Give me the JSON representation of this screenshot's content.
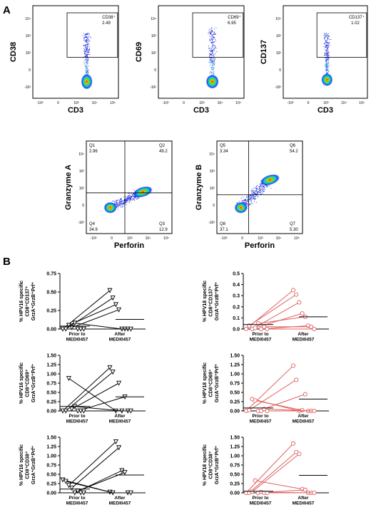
{
  "panels": {
    "A": "A",
    "B": "B"
  },
  "flow_scatter": [
    {
      "id": "cd38",
      "xlabel": "CD3",
      "ylabel": "CD38",
      "gate": {
        "name": "CD38⁺",
        "value": "2.49"
      }
    },
    {
      "id": "cd69",
      "xlabel": "CD3",
      "ylabel": "CD69",
      "gate": {
        "name": "CD69⁺",
        "value": "6.95"
      }
    },
    {
      "id": "cd137",
      "xlabel": "CD3",
      "ylabel": "CD137",
      "gate": {
        "name": "CD137⁺",
        "value": "1.02"
      }
    }
  ],
  "flow_quadrant": [
    {
      "id": "grza",
      "xlabel": "Perforin",
      "ylabel": "Granzyme A",
      "quadrants": [
        {
          "name": "Q1",
          "value": "2.96"
        },
        {
          "name": "Q2",
          "value": "49.2"
        },
        {
          "name": "Q3",
          "value": "12.9"
        },
        {
          "name": "Q4",
          "value": "34.9"
        }
      ]
    },
    {
      "id": "grzb",
      "xlabel": "Perforin",
      "ylabel": "Granzyme B",
      "quadrants": [
        {
          "name": "Q5",
          "value": "3.34"
        },
        {
          "name": "Q6",
          "value": "54.2"
        },
        {
          "name": "Q7",
          "value": "5.30"
        },
        {
          "name": "Q8",
          "value": "37.1"
        }
      ]
    }
  ],
  "flow_ticks": {
    "y": [
      "10⁴",
      "10³",
      "10²",
      "0",
      "-10²"
    ],
    "x": [
      "-10³",
      "0",
      "10³",
      "10⁴",
      "10⁵"
    ]
  },
  "chart_data": [
    {
      "type": "scatter",
      "subtype": "paired-line",
      "row": 1,
      "col": 1,
      "ylabel": "% HPV16 specific CD8⁺CD137⁺ GrzA⁺GrzB⁺Prf⁺",
      "categories": [
        "Prior to MEDI0457",
        "After MEDI0457"
      ],
      "ylim": [
        0,
        0.75
      ],
      "yticks": [
        "0.00",
        "0.25",
        "0.50",
        "0.75"
      ],
      "marker": "triangle-down",
      "color": "#000000",
      "pairs": [
        [
          0.0,
          0.52
        ],
        [
          0.0,
          0.42
        ],
        [
          0.05,
          0.33
        ],
        [
          0.02,
          0.26
        ],
        [
          0.08,
          0.0
        ],
        [
          0.0,
          0.0
        ],
        [
          0.0,
          0.0
        ],
        [
          0.0,
          0.0
        ]
      ],
      "median": [
        0.04,
        0.13
      ]
    },
    {
      "type": "scatter",
      "subtype": "paired-line",
      "row": 1,
      "col": 2,
      "ylabel": "% HPV18 specific CD8⁺CD137⁺ GrzA⁺GrzB⁺Prf⁺",
      "categories": [
        "Prior to MEDI0457",
        "After MEDI0457"
      ],
      "ylim": [
        0,
        0.5
      ],
      "yticks": [
        "0.0",
        "0.1",
        "0.2",
        "0.3",
        "0.4",
        "0.5"
      ],
      "marker": "circle",
      "color": "#e06060",
      "pairs": [
        [
          0.0,
          0.35
        ],
        [
          0.03,
          0.31
        ],
        [
          0.0,
          0.24
        ],
        [
          0.01,
          0.14
        ],
        [
          0.05,
          0.11
        ],
        [
          0.0,
          0.03
        ],
        [
          0.02,
          0.02
        ],
        [
          0.0,
          0.0
        ]
      ],
      "median": [
        0.04,
        0.11
      ]
    },
    {
      "type": "scatter",
      "subtype": "paired-line",
      "row": 2,
      "col": 1,
      "ylabel": "% HPV16 specific CD8⁺CD69⁺ GrzA⁺GrzB⁺Prf⁺",
      "categories": [
        "Prior to MEDI0457",
        "After MEDI0457"
      ],
      "ylim": [
        0,
        1.5
      ],
      "yticks": [
        "0.00",
        "0.25",
        "0.50",
        "0.75",
        "1.00",
        "1.25",
        "1.50"
      ],
      "marker": "triangle-down",
      "color": "#000000",
      "pairs": [
        [
          0.0,
          1.17
        ],
        [
          0.0,
          1.05
        ],
        [
          0.88,
          0.0
        ],
        [
          0.05,
          0.75
        ],
        [
          0.12,
          0.0
        ],
        [
          0.0,
          0.38
        ],
        [
          0.0,
          0.0
        ],
        [
          0.0,
          0.0
        ]
      ],
      "median": [
        0.12,
        0.38
      ]
    },
    {
      "type": "scatter",
      "subtype": "paired-line",
      "row": 2,
      "col": 2,
      "ylabel": "% HPV18 specific CD8⁺CD69⁺ GrzA⁺GrzB⁺Prf⁺",
      "categories": [
        "Prior to MEDI0457",
        "After MEDI0457"
      ],
      "ylim": [
        0,
        1.5
      ],
      "yticks": [
        "0.00",
        "0.25",
        "0.50",
        "0.75",
        "1.00",
        "1.25",
        "1.50"
      ],
      "marker": "circle",
      "color": "#e06060",
      "pairs": [
        [
          0.0,
          1.22
        ],
        [
          0.02,
          0.84
        ],
        [
          0.32,
          0.0
        ],
        [
          0.28,
          0.02
        ],
        [
          0.0,
          0.45
        ],
        [
          0.0,
          0.0
        ],
        [
          0.05,
          0.0
        ],
        [
          0.0,
          0.0
        ]
      ],
      "median": [
        0.08,
        0.32
      ]
    },
    {
      "type": "scatter",
      "subtype": "paired-line",
      "row": 3,
      "col": 1,
      "ylabel": "% HPV16 specific CD8⁺CD38⁺ GrzA⁺GrzB⁺Prf⁺",
      "categories": [
        "Prior to MEDI0457",
        "After MEDI0457"
      ],
      "ylim": [
        0,
        1.5
      ],
      "yticks": [
        "0.00",
        "0.25",
        "0.50",
        "0.75",
        "1.00",
        "1.25",
        "1.50"
      ],
      "marker": "triangle-down",
      "color": "#000000",
      "pairs": [
        [
          0.35,
          0.02
        ],
        [
          0.31,
          0.0
        ],
        [
          0.2,
          1.38
        ],
        [
          0.13,
          1.22
        ],
        [
          0.0,
          0.6
        ],
        [
          0.05,
          0.55
        ],
        [
          0.0,
          0.0
        ],
        [
          0.0,
          0.0
        ]
      ],
      "median": [
        0.1,
        0.48
      ]
    },
    {
      "type": "scatter",
      "subtype": "paired-line",
      "row": 3,
      "col": 2,
      "ylabel": "% HPV18 specific CD8⁺CD38⁺ GrzA⁺GrzB⁺Prf⁺",
      "categories": [
        "Prior to MEDI0457",
        "After MEDI0457"
      ],
      "ylim": [
        0,
        1.5
      ],
      "yticks": [
        "0.00",
        "0.25",
        "0.50",
        "0.75",
        "1.00",
        "1.25",
        "1.50"
      ],
      "marker": "circle",
      "color": "#e06060",
      "pairs": [
        [
          0.0,
          1.33
        ],
        [
          0.0,
          1.1
        ],
        [
          0.03,
          1.05
        ],
        [
          0.33,
          0.1
        ],
        [
          0.0,
          0.08
        ],
        [
          0.02,
          0.0
        ],
        [
          0.0,
          0.0
        ],
        [
          0.0,
          0.0
        ]
      ],
      "median": [
        0.04,
        0.47
      ]
    }
  ]
}
